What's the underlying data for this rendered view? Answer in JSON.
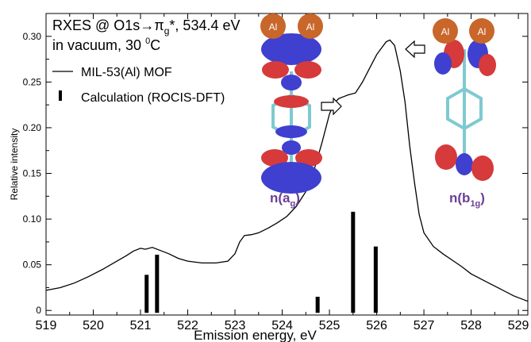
{
  "chart_data": {
    "type": "line",
    "title_line1_main": "RXES @ O1s",
    "title_line1_arrow": "→",
    "title_line1_pi": "π",
    "title_line1_sub": "g",
    "title_line1_rest": "*, 534.4 eV",
    "title_line2_a": "in vacuum, 30 ",
    "title_line2_sup": "0",
    "title_line2_b": "C",
    "xlabel": "Emission energy, eV",
    "ylabel": "Relative intensity",
    "xlim": [
      519,
      529.2
    ],
    "ylim": [
      -0.005,
      0.325
    ],
    "x_ticks": [
      "519",
      "520",
      "521",
      "522",
      "523",
      "524",
      "525",
      "526",
      "527",
      "528",
      "529"
    ],
    "y_ticks": [
      "0",
      "0.05",
      "0.10",
      "0.15",
      "0.20",
      "0.25",
      "0.30"
    ],
    "legend": [
      {
        "label": "MIL-53(Al) MOF",
        "style": "line"
      },
      {
        "label": "Calculation (ROCIS-DFT)",
        "style": "bar"
      }
    ],
    "series": [
      {
        "name": "MIL-53(Al) MOF",
        "color": "#000000",
        "points": [
          [
            519.0,
            0.022
          ],
          [
            519.3,
            0.025
          ],
          [
            519.6,
            0.03
          ],
          [
            519.9,
            0.037
          ],
          [
            520.2,
            0.045
          ],
          [
            520.5,
            0.054
          ],
          [
            520.7,
            0.06
          ],
          [
            520.85,
            0.065
          ],
          [
            521.0,
            0.068
          ],
          [
            521.1,
            0.067
          ],
          [
            521.25,
            0.069
          ],
          [
            521.4,
            0.066
          ],
          [
            521.6,
            0.062
          ],
          [
            521.8,
            0.057
          ],
          [
            522.0,
            0.054
          ],
          [
            522.3,
            0.052
          ],
          [
            522.6,
            0.052
          ],
          [
            522.85,
            0.054
          ],
          [
            523.0,
            0.062
          ],
          [
            523.1,
            0.075
          ],
          [
            523.2,
            0.082
          ],
          [
            523.35,
            0.083
          ],
          [
            523.5,
            0.085
          ],
          [
            523.7,
            0.09
          ],
          [
            523.9,
            0.096
          ],
          [
            524.1,
            0.103
          ],
          [
            524.3,
            0.114
          ],
          [
            524.5,
            0.13
          ],
          [
            524.7,
            0.158
          ],
          [
            524.85,
            0.185
          ],
          [
            525.0,
            0.215
          ],
          [
            525.1,
            0.227
          ],
          [
            525.2,
            0.232
          ],
          [
            525.3,
            0.234
          ],
          [
            525.4,
            0.236
          ],
          [
            525.55,
            0.238
          ],
          [
            525.7,
            0.25
          ],
          [
            525.85,
            0.265
          ],
          [
            526.0,
            0.28
          ],
          [
            526.1,
            0.287
          ],
          [
            526.2,
            0.294
          ],
          [
            526.28,
            0.296
          ],
          [
            526.38,
            0.29
          ],
          [
            526.5,
            0.262
          ],
          [
            526.6,
            0.228
          ],
          [
            526.7,
            0.18
          ],
          [
            526.8,
            0.14
          ],
          [
            526.9,
            0.105
          ],
          [
            527.0,
            0.085
          ],
          [
            527.2,
            0.07
          ],
          [
            527.4,
            0.062
          ],
          [
            527.6,
            0.055
          ],
          [
            527.8,
            0.048
          ],
          [
            528.0,
            0.04
          ],
          [
            528.3,
            0.032
          ],
          [
            528.6,
            0.024
          ],
          [
            528.9,
            0.016
          ],
          [
            529.2,
            0.01
          ]
        ]
      }
    ],
    "bars": [
      {
        "x": 521.13,
        "value": 0.039
      },
      {
        "x": 521.35,
        "value": 0.061
      },
      {
        "x": 524.75,
        "value": 0.015
      },
      {
        "x": 525.5,
        "value": 0.108
      },
      {
        "x": 525.98,
        "value": 0.07
      }
    ],
    "orbital_labels": [
      {
        "letter": "n(a",
        "sub": "g",
        "close": ")",
        "color": "#6b3f96"
      },
      {
        "letter": "n(b",
        "sub": "1g",
        "close": ")",
        "color": "#6b3f96"
      }
    ],
    "atom_label": "Al",
    "colors": {
      "orbital_pos": "#3f3fd0",
      "orbital_neg": "#d63a3a",
      "al_atom": "#c9662a",
      "bond": "#7ecad0"
    }
  }
}
